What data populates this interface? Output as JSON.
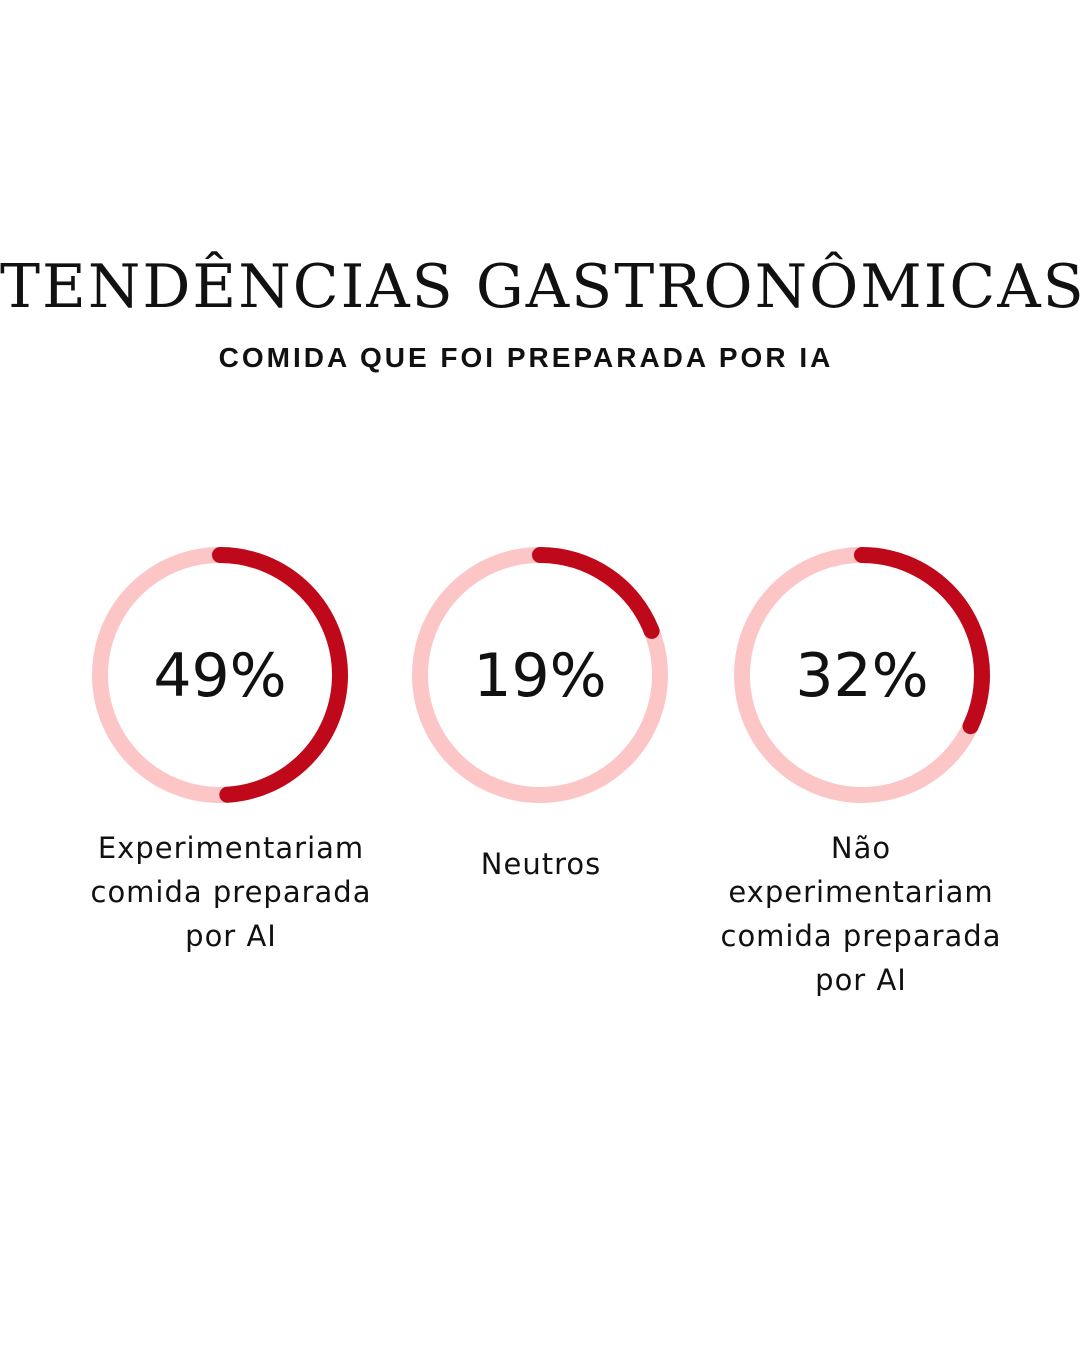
{
  "title": "TENDÊNCIAS  GASTRONÔMICAS",
  "subtitle": "COMIDA QUE FOI PREPARADA POR IA",
  "chart_data": {
    "type": "donut-progress",
    "track_color": "#fcc6c6",
    "fill_color": "#c0081b",
    "items": [
      {
        "value": 49,
        "label": "49%",
        "caption": "Experimentariam comida preparada por AI"
      },
      {
        "value": 19,
        "label": "19%",
        "caption": "Neutros"
      },
      {
        "value": 32,
        "label": "32%",
        "caption": "Não experimentariam comida preparada por AI"
      }
    ]
  }
}
